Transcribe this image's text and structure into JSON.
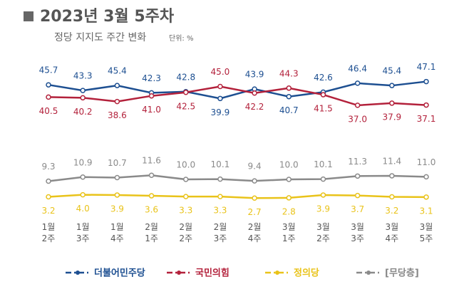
{
  "chart_data": {
    "type": "line",
    "title": "2023년 3월 5주차",
    "subtitle": "정당 지지도 주간 변화",
    "unit": "단위: %",
    "categories": [
      "1월\n2주",
      "1월\n3주",
      "1월\n4주",
      "2월\n1주",
      "2월\n2주",
      "2월\n3주",
      "2월\n4주",
      "3월\n1주",
      "3월\n2주",
      "3월\n3주",
      "3월\n4주",
      "3월\n5주"
    ],
    "series": [
      {
        "name": "더불어민주당",
        "color": "#1d4f91",
        "values": [
          45.7,
          43.3,
          45.4,
          42.3,
          42.8,
          39.9,
          43.9,
          40.7,
          42.6,
          46.4,
          45.4,
          47.1
        ],
        "value_labels": [
          "45.7",
          "43.3",
          "45.4",
          "42.3",
          "42.8",
          "39.9",
          "43.9",
          "40.7",
          "42.6",
          "46.4",
          "45.4",
          "47.1"
        ]
      },
      {
        "name": "국민의힘",
        "color": "#b3213b",
        "values": [
          40.5,
          40.2,
          38.6,
          41.0,
          42.5,
          45.0,
          42.2,
          44.3,
          41.5,
          37.0,
          37.9,
          37.1
        ],
        "value_labels": [
          "40.5",
          "40.2",
          "38.6",
          "41.0",
          "42.5",
          "45.0",
          "42.2",
          "44.3",
          "41.5",
          "37.0",
          "37.9",
          "37.1"
        ]
      },
      {
        "name": "정의당",
        "color": "#e9c31a",
        "values": [
          3.2,
          4.0,
          3.9,
          3.6,
          3.3,
          3.3,
          2.7,
          2.8,
          3.9,
          3.7,
          3.2,
          3.1
        ],
        "value_labels": [
          "3.2",
          "4.0",
          "3.9",
          "3.6",
          "3.3",
          "3.3",
          "2.7",
          "2.8",
          "3.9",
          "3.7",
          "3.2",
          "3.1"
        ]
      },
      {
        "name": "[무당층]",
        "color": "#8a8a8a",
        "values": [
          9.3,
          10.9,
          10.7,
          11.6,
          10.0,
          10.1,
          9.4,
          10.0,
          10.1,
          11.3,
          11.4,
          11.0
        ],
        "value_labels": [
          "9.3",
          "10.9",
          "10.7",
          "11.6",
          "10.0",
          "10.1",
          "9.4",
          "10.0",
          "10.1",
          "11.3",
          "11.4",
          "11.0"
        ]
      }
    ]
  }
}
